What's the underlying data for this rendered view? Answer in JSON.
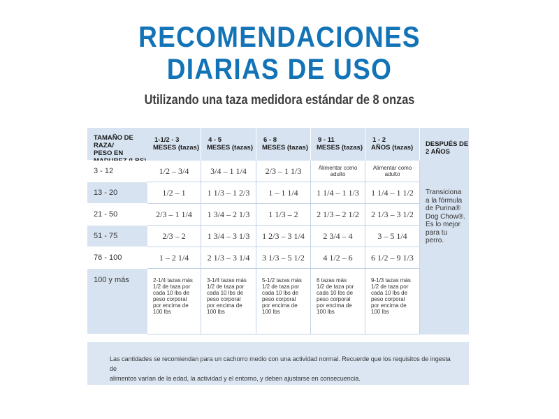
{
  "header": {
    "title_line1": "RECOMENDACIONES",
    "title_line2": "DIARIAS DE USO",
    "subtitle": "Utilizando una taza medidora estándar de 8 onzas"
  },
  "table": {
    "size_header": [
      "TAMAÑO DE RAZA/",
      "PESO EN",
      "MADUREZ (LBS)"
    ],
    "age_headers": [
      [
        "1-1/2  -  3",
        "MESES (tazas)"
      ],
      [
        "4  -  5",
        "MESES (tazas)"
      ],
      [
        "6  -  8",
        "MESES (tazas)"
      ],
      [
        "9  -  11",
        "MESES (tazas)"
      ],
      [
        "1  -  2",
        "AÑOS (tazas)"
      ]
    ],
    "after_header": [
      "DESPUÉS DE",
      "2 AÑOS"
    ],
    "rows": [
      {
        "size": "3 - 12",
        "values": [
          "1/2  –  3/4",
          "3/4 – 1 1/4",
          "2/3 – 1 1/3",
          "Alimentar como adulto",
          "Alimentar como adulto"
        ]
      },
      {
        "size": "13 - 20",
        "values": [
          "1/2  –  1",
          "1 1/3 – 1 2/3",
          "1  –  1 1/4",
          "1 1/4 – 1 1/3",
          "1 1/4 – 1 1/2"
        ]
      },
      {
        "size": "21 - 50",
        "values": [
          "2/3  –  1 1/4",
          "1 3/4 – 2 1/3",
          "1 1/3  –  2",
          "2 1/3 – 2 1/2",
          "2 1/3 – 3 1/2"
        ]
      },
      {
        "size": "51 - 75",
        "values": [
          "2/3  –  2",
          "1 3/4 – 3 1/3",
          "1 2/3 – 3 1/4",
          "2 3/4 – 4",
          "3  –  5 1/4"
        ]
      },
      {
        "size": "76 - 100",
        "values": [
          "1  –  2 1/4",
          "2 1/3 – 3 1/4",
          "3 1/3 – 5 1/2",
          "4 1/2  –  6",
          "6 1/2 – 9 1/3"
        ]
      },
      {
        "size": "100 y más",
        "values": [
          [
            "2-1/4 tazas más",
            "1/2 de taza por",
            "cada 10 lbs de",
            "peso corporal",
            "por encima de",
            "100 lbs"
          ],
          [
            "3-1/4 tazas más",
            "1/2 de taza por",
            "cada 10 lbs de",
            "peso corporal",
            "por encima de",
            "100 lbs"
          ],
          [
            "5-1/2 tazas más",
            "1/2 de taza por",
            "cada 10 lbs de",
            "peso corporal",
            "por encima de",
            "100 lbs"
          ],
          [
            "6 tazas más",
            "1/2 de taza por",
            "cada 10 lbs de",
            "peso corporal",
            "por encima de",
            "100 lbs"
          ],
          [
            "9-1/3 tazas más",
            "1/2 de taza por",
            "cada 10 lbs de",
            "peso corporal",
            "por encima de",
            "100 lbs"
          ]
        ]
      }
    ],
    "after_text": [
      "Transiciona",
      "a la fórmula",
      "de Purina®",
      "Dog Chow®.",
      "Es lo mejor",
      "para tu",
      "perro."
    ]
  },
  "notes": {
    "line1": "Las cantidades se recomiendan para un cachorro medio con una actividad normal. Recuerde que los requisitos de ingesta de",
    "line2": "alimentos varían de la edad, la actividad y el entorno, y deben ajustarse en consecuencia."
  },
  "colors": {
    "title": "#1273b7",
    "header_fill": "#d7e3f1",
    "grid_line": "#c2d2e6"
  }
}
